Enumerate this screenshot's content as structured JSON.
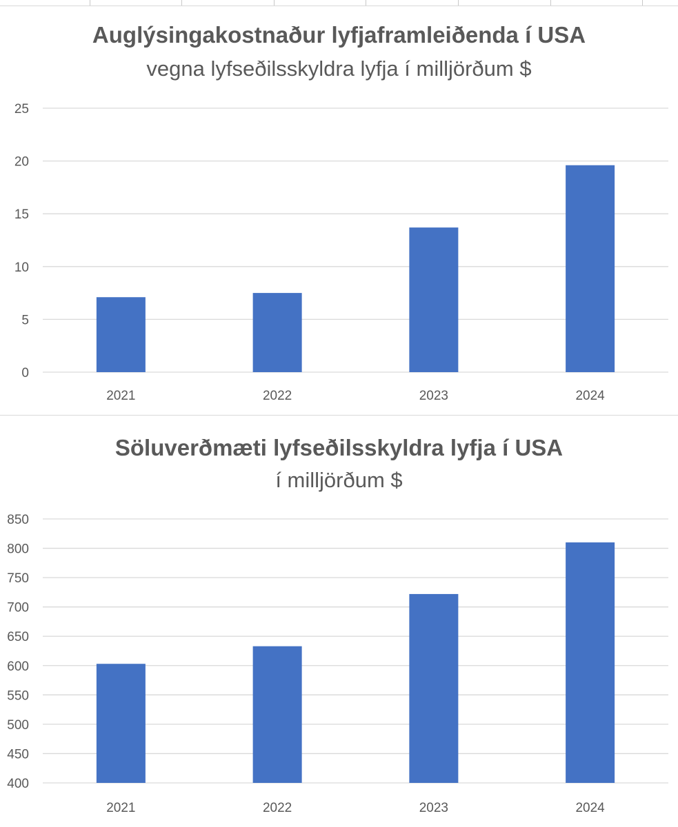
{
  "colors": {
    "bar": "#4472C4",
    "grid": "#d9d9d9",
    "text": "#595959"
  },
  "chart_data": [
    {
      "type": "bar",
      "title": "Auglýsingakostnaður lyfjaframleiðenda í USA",
      "subtitle": "vegna lyfseðilsskyldra lyfja í milljörðum $",
      "categories": [
        "2021",
        "2022",
        "2023",
        "2024"
      ],
      "values": [
        7.1,
        7.5,
        13.7,
        19.6
      ],
      "ylim": [
        0,
        25
      ],
      "yticks": [
        0,
        5,
        10,
        15,
        20,
        25
      ],
      "grid": true,
      "legend": "none"
    },
    {
      "type": "bar",
      "title": "Söluverðmæti lyfseðilsskyldra lyfja í USA",
      "subtitle": "í milljörðum $",
      "categories": [
        "2021",
        "2022",
        "2023",
        "2024"
      ],
      "values": [
        603,
        633,
        722,
        810
      ],
      "ylim": [
        400,
        850
      ],
      "yticks": [
        400,
        450,
        500,
        550,
        600,
        650,
        700,
        750,
        800,
        850
      ],
      "grid": true,
      "legend": "none"
    }
  ]
}
